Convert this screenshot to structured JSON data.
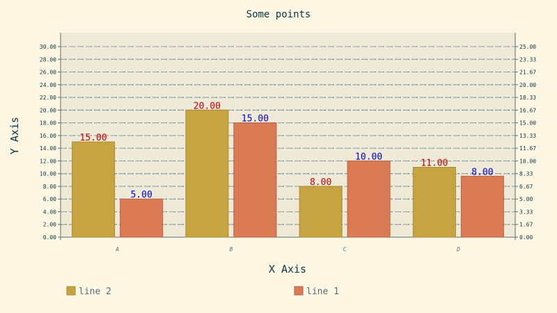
{
  "chart_data": {
    "type": "bar",
    "title": "Some points",
    "xlabel": "X Axis",
    "ylabel": "Y Axis",
    "categories": [
      "A",
      "B",
      "C",
      "D"
    ],
    "series": [
      {
        "name": "line 2",
        "values": [
          15,
          20,
          8,
          11
        ],
        "color": "#c7a442",
        "label_color": "#cc0000",
        "axis": "left"
      },
      {
        "name": "line 1",
        "values": [
          5,
          15,
          10,
          8
        ],
        "color": "#da7b56",
        "label_color": "#0000dd",
        "axis": "right"
      }
    ],
    "ylim_left": [
      0,
      30
    ],
    "ylim_right": [
      0,
      25
    ],
    "yticks_left": [
      "0.00",
      "2.00",
      "4.00",
      "6.00",
      "8.00",
      "10.00",
      "12.00",
      "14.00",
      "16.00",
      "18.00",
      "20.00",
      "22.00",
      "24.00",
      "26.00",
      "28.00",
      "30.00"
    ],
    "yticks_right": [
      "0.00",
      "1.67",
      "3.33",
      "5.00",
      "6.67",
      "8.33",
      "10.00",
      "11.67",
      "13.33",
      "15.00",
      "16.67",
      "18.33",
      "20.00",
      "21.67",
      "23.33",
      "25.00"
    ],
    "value_labels": [
      [
        "15.00",
        "20.00",
        "8.00",
        "11.00"
      ],
      [
        "5.00",
        "15.00",
        "10.00",
        "8.00"
      ]
    ],
    "grid": true,
    "legend_position": "bottom"
  }
}
